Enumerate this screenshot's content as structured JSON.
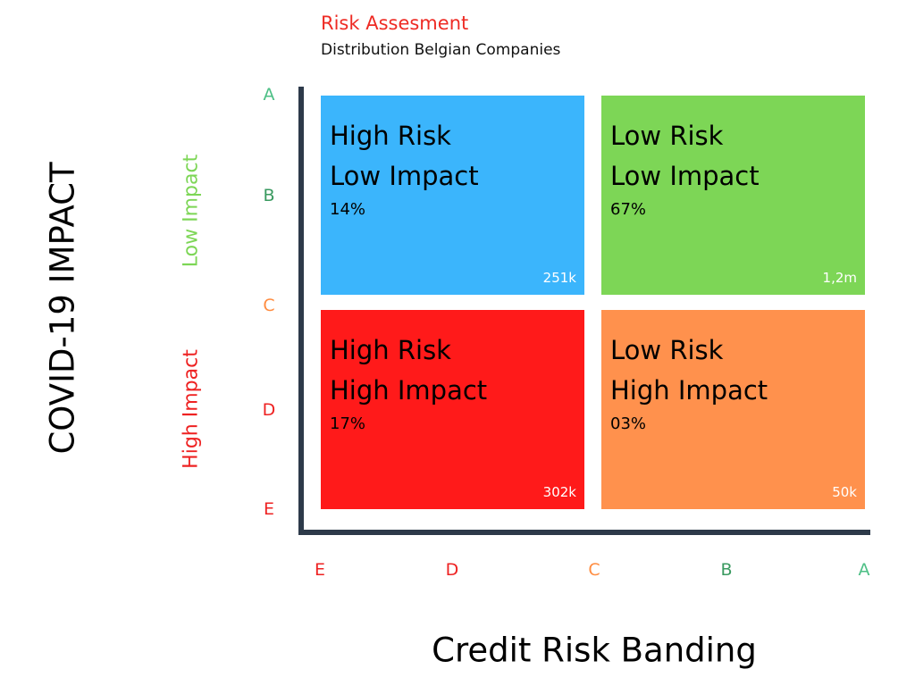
{
  "title": "Risk Assesment",
  "subtitle": "Distribution Belgian Companies",
  "y_axis": {
    "title": "COVID-19 IMPACT",
    "bands": [
      "Low Impact",
      "High Impact"
    ],
    "ticks": [
      "A",
      "B",
      "C",
      "D",
      "E"
    ]
  },
  "x_axis": {
    "title": "Credit Risk Banding",
    "ticks": [
      "E",
      "D",
      "C",
      "B",
      "A"
    ]
  },
  "colors": {
    "A": "#4cbf85",
    "B": "#3a9a60",
    "C": "#ff8c40",
    "D": "#ee2222",
    "E": "#ee2222",
    "axis": "#2d3a4a"
  },
  "quadrants": [
    {
      "line1": "High Risk",
      "line2": "Low Impact",
      "percent": "14%",
      "count": "251k",
      "color": "#3bb5fc"
    },
    {
      "line1": "Low Risk",
      "line2": "Low Impact",
      "percent": "67%",
      "count": "1,2m",
      "color": "#7dd656"
    },
    {
      "line1": "High Risk",
      "line2": "High Impact",
      "percent": "17%",
      "count": "302k",
      "color": "#ff1a1a"
    },
    {
      "line1": "Low Risk",
      "line2": "High Impact",
      "percent": "03%",
      "count": "50k",
      "color": "#ff914d"
    }
  ]
}
